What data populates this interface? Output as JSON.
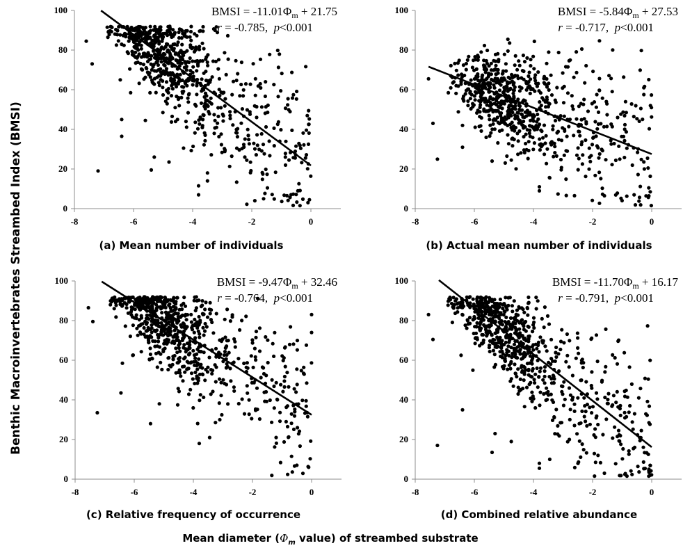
{
  "chart_data": {
    "type": "scatter",
    "ylabel": "Benthic Macroinvertebrates Streambed Index (BMSI)",
    "xlabel_parts": [
      "Mean diameter (",
      "Φ",
      "m",
      " value) of streambed substrate"
    ],
    "panels": [
      {
        "id": "a",
        "caption": "(a)  Mean number of individuals",
        "equation": {
          "lhs": "BMSI = -11.01Φ",
          "sub": "m",
          "rhs": " + 21.75"
        },
        "stats": {
          "r": "r",
          "r_text": " = -0.785,  ",
          "p": "p",
          "p_text": "<0.001"
        },
        "slope": -11.01,
        "intercept": 21.75,
        "fit_x_range": [
          -7.1,
          0
        ],
        "xlim": [
          -8,
          1
        ],
        "ylim": [
          0,
          100
        ],
        "xticks": [
          "-8",
          "-6",
          "-4",
          "-2",
          "0"
        ],
        "xtick_values": [
          -8,
          -6,
          -4,
          -2,
          0
        ],
        "yticks": [
          "0",
          "20",
          "40",
          "60",
          "80",
          "100"
        ],
        "ytick_values": [
          0,
          20,
          40,
          60,
          80,
          100
        ],
        "seed": 11,
        "outliers": [
          [
            -7.6,
            84.5
          ],
          [
            -7.4,
            73
          ],
          [
            -7.2,
            19
          ],
          [
            -6.4,
            45
          ],
          [
            -6.4,
            36.5
          ],
          [
            -6.45,
            65
          ],
          [
            -6.1,
            58.5
          ],
          [
            -5.6,
            44.5
          ],
          [
            -5.4,
            19.5
          ],
          [
            -5.3,
            26
          ],
          [
            -4.8,
            23.5
          ],
          [
            -3.8,
            7
          ],
          [
            -3.8,
            11.5
          ],
          [
            -3.5,
            14
          ],
          [
            -3.5,
            18
          ],
          [
            -1.6,
            5
          ],
          [
            -0.05,
            4.5
          ],
          [
            -0.1,
            3
          ]
        ]
      },
      {
        "id": "b",
        "caption": "(b)  Actual mean number of individuals",
        "equation": {
          "lhs": "BMSI = -5.84Φ",
          "sub": "m",
          "rhs": " + 27.53"
        },
        "stats": {
          "r": "r",
          "r_text": " = -0.717,  ",
          "p": "p",
          "p_text": "<0.001"
        },
        "slope": -5.84,
        "intercept": 27.53,
        "fit_x_range": [
          -7.55,
          0
        ],
        "xlim": [
          -8,
          1
        ],
        "ylim": [
          0,
          100
        ],
        "xticks": [
          "-8",
          "-6",
          "-4",
          "-2",
          "0"
        ],
        "xtick_values": [
          -8,
          -6,
          -4,
          -2,
          0
        ],
        "yticks": [
          "0",
          "20",
          "40",
          "60",
          "80",
          "100"
        ],
        "ytick_values": [
          0,
          20,
          40,
          60,
          80,
          100
        ],
        "seed": 23,
        "outliers": [
          [
            -7.55,
            65.5
          ],
          [
            -7.4,
            43
          ],
          [
            -7.25,
            25
          ],
          [
            -6.4,
            42
          ],
          [
            -6.4,
            31
          ],
          [
            -5.4,
            24
          ],
          [
            -4.9,
            26.5
          ],
          [
            -4.75,
            24.5
          ],
          [
            -3.8,
            11
          ],
          [
            -3.8,
            9
          ],
          [
            -3.45,
            15.5
          ],
          [
            -1.6,
            6.5
          ],
          [
            -0.05,
            8.5
          ],
          [
            -0.1,
            10.5
          ]
        ]
      },
      {
        "id": "c",
        "caption": "(c)  Relative frequency of occurrence",
        "equation": {
          "lhs": "BMSI = -9.47Φ",
          "sub": "m",
          "rhs": " + 32.46"
        },
        "stats": {
          "r": "r",
          "r_text": " = -0.764,  ",
          "p": "p",
          "p_text": "<0.001"
        },
        "slope": -9.47,
        "intercept": 32.46,
        "fit_x_range": [
          -7.1,
          0
        ],
        "xlim": [
          -8,
          1
        ],
        "ylim": [
          0,
          100
        ],
        "xticks": [
          "-8",
          "-6",
          "-4",
          "-2",
          "0"
        ],
        "xtick_values": [
          -8,
          -6,
          -4,
          -2,
          0
        ],
        "yticks": [
          "0",
          "20",
          "40",
          "60",
          "80",
          "100"
        ],
        "ytick_values": [
          0,
          20,
          40,
          60,
          80,
          100
        ],
        "seed": 37,
        "outliers": [
          [
            -7.55,
            86.5
          ],
          [
            -7.4,
            79.5
          ],
          [
            -7.25,
            33.5
          ],
          [
            -6.45,
            43.5
          ],
          [
            -6.4,
            58.5
          ],
          [
            -6.05,
            62.5
          ],
          [
            -5.45,
            28
          ],
          [
            -5.15,
            38
          ],
          [
            -3.8,
            18
          ],
          [
            -3.45,
            21
          ],
          [
            0,
            83
          ],
          [
            0,
            74
          ],
          [
            -0.1,
            6
          ],
          [
            -0.5,
            7
          ]
        ]
      },
      {
        "id": "d",
        "caption": "(d)  Combined relative abundance",
        "equation": {
          "lhs": "BMSI = -11.70Φ",
          "sub": "m",
          "rhs": " + 16.17"
        },
        "stats": {
          "r": "r",
          "r_text": " = -0.791,  ",
          "p": "p",
          "p_text": "<0.001"
        },
        "slope": -11.7,
        "intercept": 16.17,
        "fit_x_range": [
          -7.2,
          0
        ],
        "xlim": [
          -8,
          1
        ],
        "ylim": [
          0,
          100
        ],
        "xticks": [
          "-8",
          "-6",
          "-4",
          "-2",
          "0"
        ],
        "xtick_values": [
          -8,
          -6,
          -4,
          -2,
          0
        ],
        "yticks": [
          "0",
          "20",
          "40",
          "60",
          "80",
          "100"
        ],
        "ytick_values": [
          0,
          20,
          40,
          60,
          80,
          100
        ],
        "seed": 53,
        "outliers": [
          [
            -7.55,
            83
          ],
          [
            -7.4,
            70.5
          ],
          [
            -7.25,
            17
          ],
          [
            -6.45,
            62.5
          ],
          [
            -6.4,
            35
          ],
          [
            -6.05,
            55
          ],
          [
            -5.4,
            13.5
          ],
          [
            -5.3,
            23
          ],
          [
            -4.75,
            19
          ],
          [
            -3.8,
            8
          ],
          [
            -3.8,
            5.5
          ],
          [
            -3.45,
            10
          ],
          [
            -1.6,
            3
          ],
          [
            -0.05,
            2
          ],
          [
            -0.1,
            1.5
          ]
        ]
      }
    ]
  }
}
